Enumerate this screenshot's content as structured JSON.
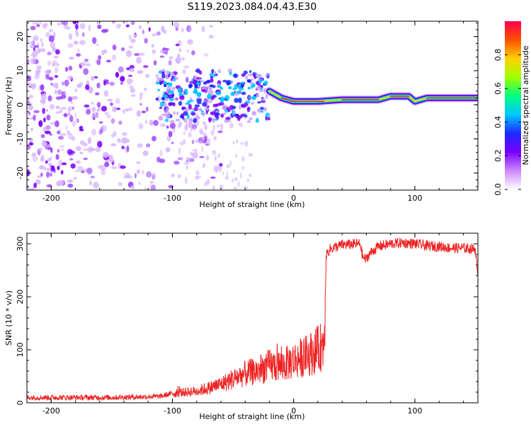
{
  "title": "S119.2023.084.04.43.E30",
  "chart_data": [
    {
      "type": "heatmap",
      "xlabel": "Height of straight line (km)",
      "ylabel": "Frequency (Hz)",
      "xlim": [
        -220,
        152
      ],
      "ylim": [
        -25,
        24.5
      ],
      "xticks": [
        -200,
        -100,
        0,
        100
      ],
      "yticks": [
        -20,
        -10,
        0,
        10,
        20
      ],
      "colorbar": {
        "label": "Normalized spectral amplitude",
        "range": [
          0,
          1
        ],
        "ticks": [
          "0.0",
          "0.2",
          "0.4",
          "0.6",
          "0.8"
        ],
        "colormap": [
          "#ffffff",
          "#cc88ff",
          "#7a00ff",
          "#1e28ff",
          "#00c8ff",
          "#00ff80",
          "#a0ff00",
          "#ffd000",
          "#ff5000",
          "#ff0050"
        ]
      },
      "features": {
        "noise_region_x": [
          -220,
          -80
        ],
        "noise_freq_range": [
          -25,
          24.5
        ],
        "scattered_blobs_x": [
          -110,
          -20
        ],
        "scattered_blobs_freq": [
          -5,
          10
        ],
        "narrowband_track": [
          {
            "x": -20,
            "freq": 4
          },
          {
            "x": -10,
            "freq": 2
          },
          {
            "x": 0,
            "freq": 1
          },
          {
            "x": 20,
            "freq": 1
          },
          {
            "x": 40,
            "freq": 1.5
          },
          {
            "x": 70,
            "freq": 1.5
          },
          {
            "x": 80,
            "freq": 2.5
          },
          {
            "x": 95,
            "freq": 2.5
          },
          {
            "x": 100,
            "freq": 1
          },
          {
            "x": 110,
            "freq": 2
          },
          {
            "x": 152,
            "freq": 2
          }
        ]
      }
    },
    {
      "type": "line",
      "xlabel": "Height of straight line (km)",
      "ylabel": "SNR (10 * v/v)",
      "xlim": [
        -220,
        152
      ],
      "ylim": [
        0,
        320
      ],
      "xticks": [
        -200,
        -100,
        0,
        100
      ],
      "yticks": [
        0,
        100,
        200,
        300
      ],
      "series": [
        {
          "color": "#ee2222",
          "x": [
            -220,
            -200,
            -150,
            -110,
            -100,
            -90,
            -80,
            -70,
            -60,
            -50,
            -40,
            -30,
            -20,
            -10,
            0,
            10,
            20,
            25,
            26,
            27,
            30,
            40,
            55,
            57,
            60,
            62,
            70,
            80,
            90,
            100,
            110,
            120,
            130,
            140,
            150,
            152
          ],
          "values": [
            10,
            10,
            10,
            12,
            18,
            20,
            22,
            28,
            35,
            45,
            55,
            60,
            70,
            70,
            80,
            88,
            100,
            110,
            200,
            280,
            290,
            298,
            300,
            275,
            270,
            280,
            295,
            300,
            302,
            300,
            296,
            295,
            292,
            292,
            290,
            230
          ]
        }
      ]
    }
  ]
}
